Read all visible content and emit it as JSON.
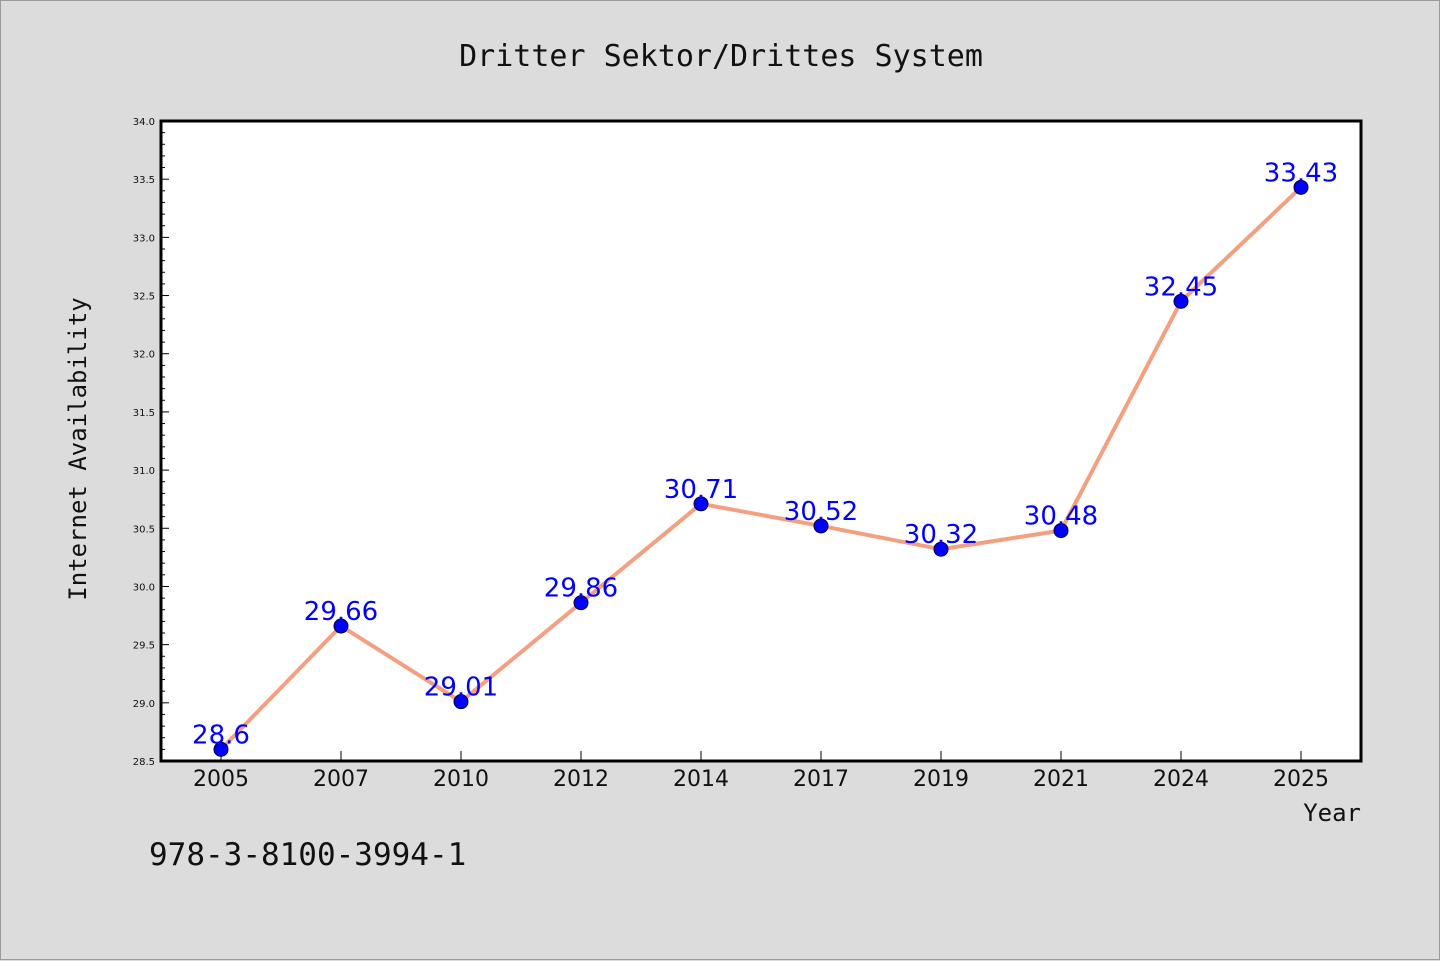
{
  "chart_data": {
    "type": "line",
    "title": "Dritter Sektor/Drittes System",
    "xlabel": "Year",
    "ylabel": "Internet Availability",
    "categories": [
      "2005",
      "2007",
      "2010",
      "2012",
      "2014",
      "2017",
      "2019",
      "2021",
      "2024",
      "2025"
    ],
    "values": [
      28.6,
      29.66,
      29.01,
      29.86,
      30.71,
      30.52,
      30.32,
      30.48,
      32.45,
      33.43
    ],
    "data_labels": [
      "28.6",
      "29.66",
      "29.01",
      "29.86",
      "30.71",
      "30.52",
      "30.32",
      "30.48",
      "32.45",
      "33.43"
    ],
    "ylim": [
      28.5,
      34.0
    ],
    "yticks": [
      "28.5",
      "29.0",
      "29.5",
      "30.0",
      "30.5",
      "31.0",
      "31.5",
      "32.0",
      "32.5",
      "33.0",
      "33.5",
      "34.0"
    ],
    "grid": false,
    "legend": "none",
    "line_color": "#f4a080",
    "marker_color": "#0000ff",
    "label_color": "#0000ff"
  },
  "footer": {
    "isbn": "978-3-8100-3994-1"
  }
}
